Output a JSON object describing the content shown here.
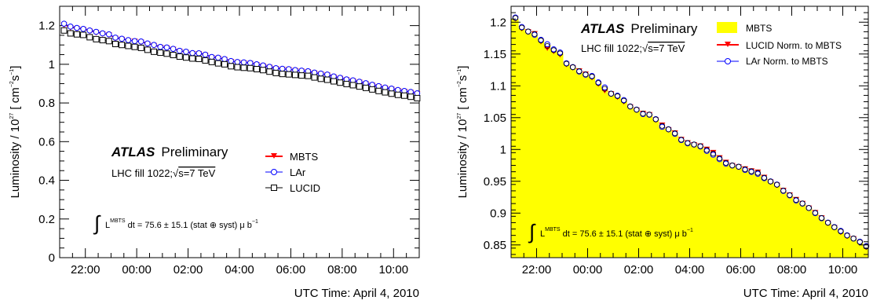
{
  "chart_data": [
    {
      "type": "line",
      "x_tick_labels": [
        "22:00",
        "00:00",
        "02:00",
        "04:00",
        "06:00",
        "08:00",
        "10:00"
      ],
      "xlabel": "UTC Time: April 4, 2010",
      "ylabel": "Luminosity / 10^27 [ cm^-2 s^-1 ]",
      "ylabel_parts": {
        "pre": "Luminosity / 10",
        "exp1": "27",
        "mid": " [ cm",
        "exp2": "−2",
        "mid2": "s",
        "exp3": "−1",
        "post": "]"
      },
      "ylim": [
        0,
        1.3
      ],
      "y_tick_labels": [
        "0",
        "0.2",
        "0.4",
        "0.6",
        "0.8",
        "1",
        "1.2"
      ],
      "x_hours": [
        21.17,
        21.42,
        21.67,
        21.92,
        22.17,
        22.42,
        22.67,
        22.92,
        23.17,
        23.42,
        23.67,
        23.92,
        0.17,
        0.42,
        0.67,
        0.92,
        1.17,
        1.42,
        1.67,
        1.92,
        2.17,
        2.42,
        2.67,
        2.92,
        3.17,
        3.42,
        3.67,
        3.92,
        4.17,
        4.42,
        4.67,
        4.92,
        5.17,
        5.42,
        5.67,
        5.92,
        6.17,
        6.42,
        6.67,
        6.92,
        7.17,
        7.42,
        7.67,
        7.92,
        8.17,
        8.42,
        8.67,
        8.92,
        9.17,
        9.42,
        9.67,
        9.92,
        10.17,
        10.42,
        10.67,
        10.92
      ],
      "series": [
        {
          "name": "MBTS",
          "color": "#ff0000",
          "marker": "triangle-down",
          "values": [
            1.205,
            1.19,
            1.185,
            1.18,
            1.172,
            1.165,
            1.158,
            1.152,
            1.135,
            1.13,
            1.122,
            1.12,
            1.115,
            1.105,
            1.098,
            1.088,
            1.085,
            1.078,
            1.068,
            1.062,
            1.055,
            1.055,
            1.048,
            1.035,
            1.032,
            1.025,
            1.015,
            1.01,
            1.008,
            1.005,
            0.998,
            0.992,
            0.985,
            0.978,
            0.975,
            0.973,
            0.968,
            0.965,
            0.962,
            0.955,
            0.95,
            0.945,
            0.935,
            0.928,
            0.92,
            0.915,
            0.908,
            0.9,
            0.892,
            0.885,
            0.878,
            0.872,
            0.865,
            0.86,
            0.855,
            0.848
          ]
        },
        {
          "name": "LAr",
          "color": "#0000ff",
          "marker": "open-circle",
          "values": [
            1.21,
            1.195,
            1.188,
            1.183,
            1.175,
            1.168,
            1.16,
            1.155,
            1.138,
            1.132,
            1.125,
            1.12,
            1.118,
            1.108,
            1.1,
            1.09,
            1.087,
            1.08,
            1.07,
            1.065,
            1.058,
            1.057,
            1.05,
            1.038,
            1.034,
            1.027,
            1.017,
            1.012,
            1.01,
            1.007,
            1.0,
            0.994,
            0.987,
            0.98,
            0.977,
            0.975,
            0.97,
            0.967,
            0.964,
            0.957,
            0.952,
            0.947,
            0.937,
            0.93,
            0.922,
            0.917,
            0.91,
            0.902,
            0.894,
            0.887,
            0.88,
            0.874,
            0.867,
            0.862,
            0.857,
            0.85
          ]
        },
        {
          "name": "LUCID",
          "color": "#000000",
          "marker": "open-square",
          "values": [
            1.175,
            1.16,
            1.155,
            1.152,
            1.14,
            1.13,
            1.125,
            1.12,
            1.105,
            1.1,
            1.095,
            1.09,
            1.085,
            1.075,
            1.065,
            1.06,
            1.055,
            1.048,
            1.04,
            1.035,
            1.03,
            1.028,
            1.02,
            1.012,
            1.005,
            1.0,
            0.99,
            0.985,
            0.982,
            0.98,
            0.975,
            0.97,
            0.962,
            0.955,
            0.95,
            0.948,
            0.945,
            0.942,
            0.94,
            0.932,
            0.925,
            0.92,
            0.912,
            0.905,
            0.898,
            0.892,
            0.885,
            0.878,
            0.87,
            0.862,
            0.855,
            0.848,
            0.842,
            0.838,
            0.832,
            0.825
          ]
        }
      ],
      "legend": {
        "position": "center-right",
        "entries": [
          "MBTS",
          "LAr",
          "LUCID"
        ]
      },
      "annotations": {
        "atlas": "ATLAS",
        "preliminary": "Preliminary",
        "fill_pre": "LHC fill 1022;",
        "fill_post": "s=7 TeV",
        "integral": "∫",
        "lumi_L": "L",
        "lumi_sup": "MBTS",
        "lumi_post": " dt = 75.6 ± 15.1 (stat ⊕ syst) μ b",
        "lumi_exp": "−1"
      }
    },
    {
      "type": "area",
      "x_tick_labels": [
        "22:00",
        "00:00",
        "02:00",
        "04:00",
        "06:00",
        "08:00",
        "10:00"
      ],
      "xlabel": "UTC Time: April 4, 2010",
      "ylabel": "Luminosity / 10^27 [ cm^-2 s^-1 ]",
      "ylabel_parts": {
        "pre": "Luminosity / 10",
        "exp1": "27",
        "mid": " [ cm",
        "exp2": "−2",
        "mid2": "s",
        "exp3": "−1",
        "post": "]"
      },
      "ylim": [
        0.83,
        1.225
      ],
      "y_tick_labels": [
        "0.85",
        "0.9",
        "0.95",
        "1",
        "1.05",
        "1.1",
        "1.15",
        "1.2"
      ],
      "series": [
        {
          "name": "MBTS",
          "color": "#ffff00",
          "style": "filled-step"
        },
        {
          "name": "LUCID Norm. to MBTS",
          "color": "#ff0000",
          "marker": "triangle-down"
        },
        {
          "name": "LAr Norm. to MBTS",
          "color": "#0000ff",
          "marker": "open-circle"
        }
      ],
      "legend": {
        "position": "top-right",
        "entries": [
          "MBTS",
          "LUCID Norm. to MBTS",
          "LAr Norm. to MBTS"
        ]
      },
      "annotations": {
        "atlas": "ATLAS",
        "preliminary": "Preliminary",
        "fill_pre": "LHC fill 1022;",
        "fill_post": "s=7 TeV",
        "integral": "∫",
        "lumi_L": "L",
        "lumi_sup": "MBTS",
        "lumi_post": " dt = 75.6 ± 15.1 (stat ⊕ syst) μ b",
        "lumi_exp": "−1"
      }
    }
  ]
}
